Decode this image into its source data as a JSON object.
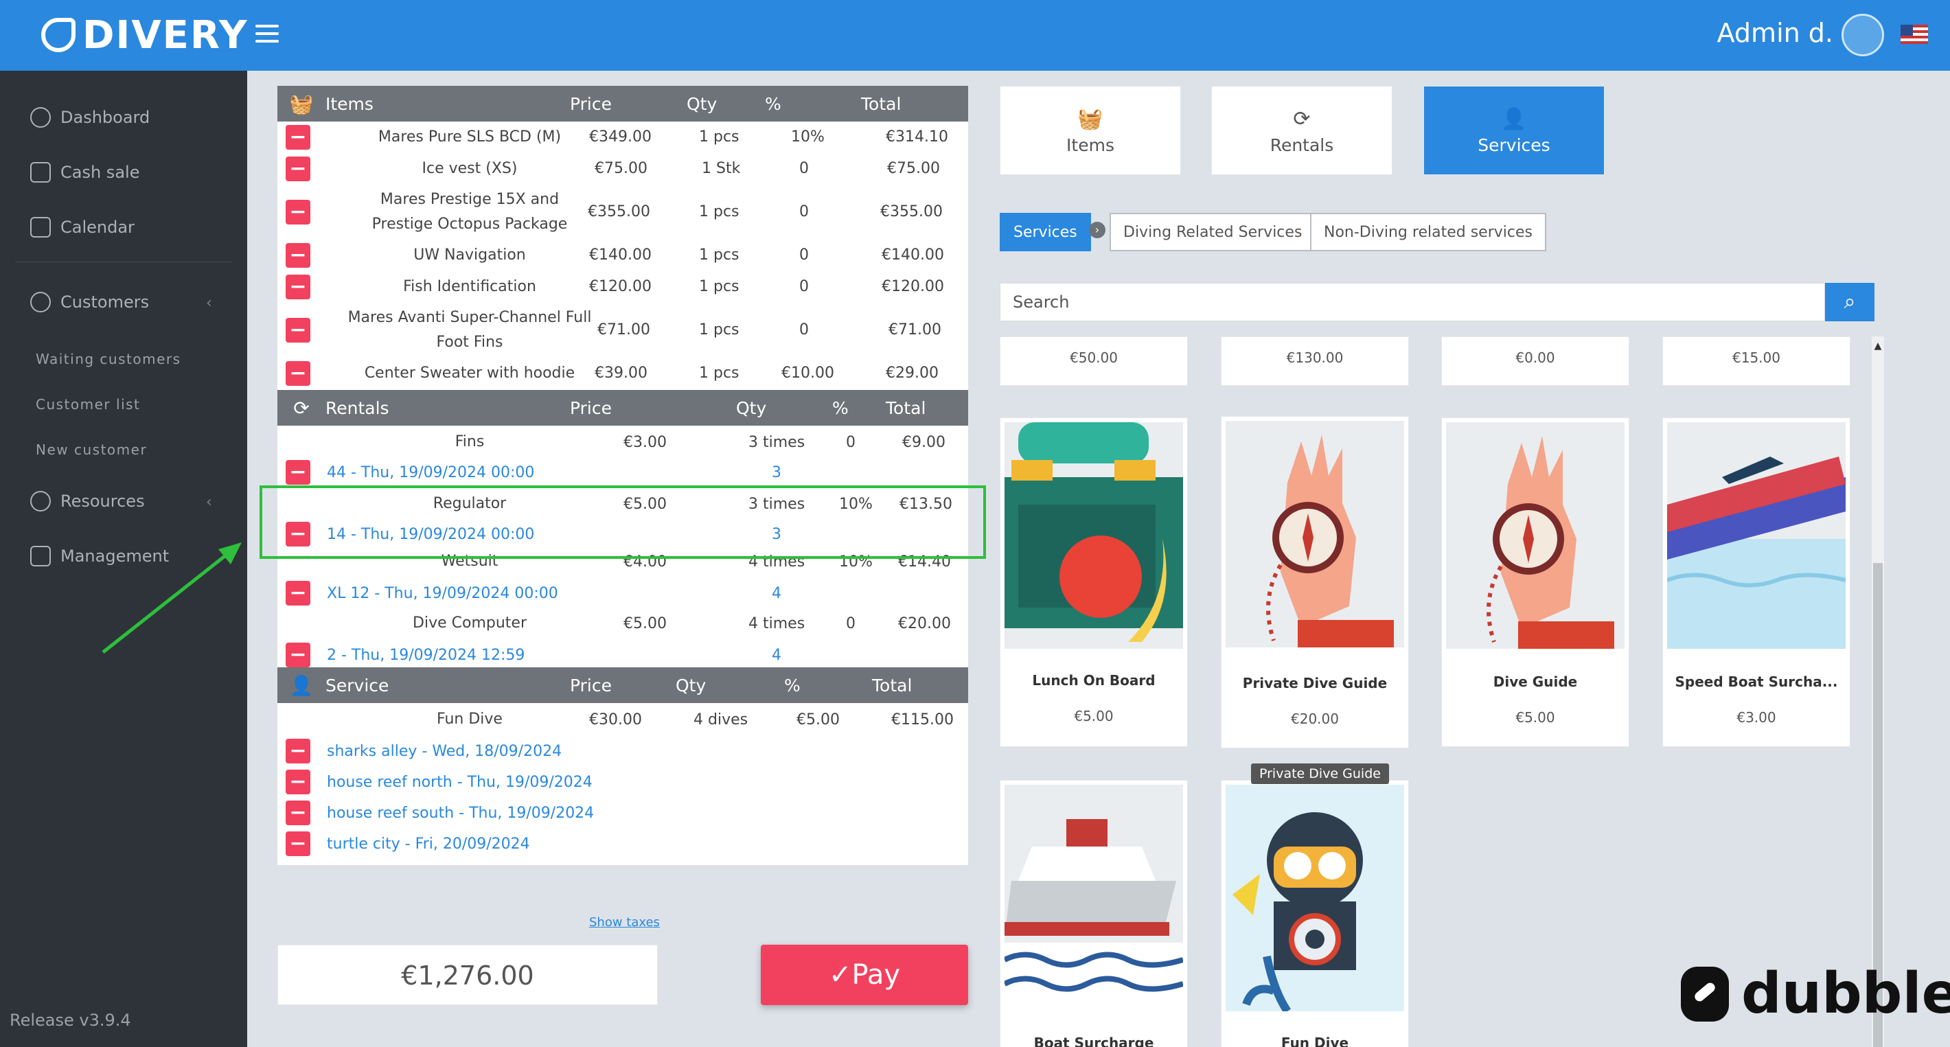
{
  "app": {
    "brand": "DIVERY",
    "admin_name": "Admin d.",
    "release": "Release v3.9.4"
  },
  "sidebar": {
    "items": [
      {
        "label": "Dashboard",
        "icon": "speedometer-icon"
      },
      {
        "label": "Cash sale",
        "icon": "cart-icon"
      },
      {
        "label": "Calendar",
        "icon": "calendar-icon"
      },
      {
        "label": "Customers",
        "icon": "users-icon"
      },
      {
        "label": "Resources",
        "icon": "gear-icon"
      },
      {
        "label": "Management",
        "icon": "building-icon"
      }
    ],
    "customer_sub": [
      "Waiting customers",
      "Customer list",
      "New customer"
    ]
  },
  "cart": {
    "items_header": {
      "title": "Items",
      "price": "Price",
      "qty": "Qty",
      "pct": "%",
      "total": "Total"
    },
    "items": [
      {
        "name": "Mares Pure SLS BCD (M)",
        "price": "€349.00",
        "qty": "1 pcs",
        "pct": "10%",
        "total": "€314.10"
      },
      {
        "name": "Ice vest (XS)",
        "price": "€75.00",
        "qty": "1 Stk",
        "pct": "0",
        "total": "€75.00"
      },
      {
        "name": "Mares Prestige 15X and Prestige Octopus Package",
        "price": "€355.00",
        "qty": "1 pcs",
        "pct": "0",
        "total": "€355.00"
      },
      {
        "name": "UW Navigation",
        "price": "€140.00",
        "qty": "1 pcs",
        "pct": "0",
        "total": "€140.00"
      },
      {
        "name": "Fish Identification",
        "price": "€120.00",
        "qty": "1 pcs",
        "pct": "0",
        "total": "€120.00"
      },
      {
        "name": "Mares Avanti Super-Channel Full Foot Fins",
        "price": "€71.00",
        "qty": "1 pcs",
        "pct": "0",
        "total": "€71.00"
      },
      {
        "name": "Center Sweater with hoodie",
        "price": "€39.00",
        "qty": "1 pcs",
        "pct": "€10.00",
        "total": "€29.00"
      }
    ],
    "rentals_header": {
      "title": "Rentals",
      "price": "Price",
      "qty": "Qty",
      "pct": "%",
      "total": "Total"
    },
    "rentals": [
      {
        "name": "Fins",
        "price": "€3.00",
        "qty": "3 times",
        "pct": "0",
        "total": "€9.00",
        "link": "44 - Thu, 19/09/2024 00:00",
        "count": "3"
      },
      {
        "name": "Regulator",
        "price": "€5.00",
        "qty": "3 times",
        "pct": "10%",
        "total": "€13.50",
        "link": "14 - Thu, 19/09/2024 00:00",
        "count": "3"
      },
      {
        "name": "Wetsuit",
        "price": "€4.00",
        "qty": "4 times",
        "pct": "10%",
        "total": "€14.40",
        "link": "XL 12 - Thu, 19/09/2024 00:00",
        "count": "4"
      },
      {
        "name": "Dive Computer",
        "price": "€5.00",
        "qty": "4 times",
        "pct": "0",
        "total": "€20.00",
        "link": "2 - Thu, 19/09/2024 12:59",
        "count": "4"
      }
    ],
    "service_header": {
      "title": "Service",
      "price": "Price",
      "qty": "Qty",
      "pct": "%",
      "total": "Total"
    },
    "service": {
      "name": "Fun Dive",
      "price": "€30.00",
      "qty": "4 dives",
      "pct": "€5.00",
      "total": "€115.00"
    },
    "dives": [
      "sharks alley - Wed, 18/09/2024",
      "house reef north - Thu, 19/09/2024",
      "house reef south - Thu, 19/09/2024",
      "turtle city - Fri, 20/09/2024"
    ],
    "show_taxes": "Show taxes",
    "grand_total": "€1,276.00",
    "pay_label": "Pay"
  },
  "catalog": {
    "tabs": [
      {
        "label": "Items",
        "icon": "basket-icon"
      },
      {
        "label": "Rentals",
        "icon": "refresh-icon"
      },
      {
        "label": "Services",
        "icon": "user-icon"
      }
    ],
    "filters": [
      "Services",
      "Diving Related Services",
      "Non-Diving related services"
    ],
    "search_placeholder": "Search",
    "top_prices": [
      "€50.00",
      "€130.00",
      "€0.00",
      "€15.00"
    ],
    "cards": [
      {
        "name": "Lunch On Board",
        "price": "€5.00"
      },
      {
        "name": "Private Dive Guide",
        "price": "€20.00"
      },
      {
        "name": "Dive Guide",
        "price": "€5.00"
      },
      {
        "name": "Speed Boat Surcha...",
        "price": "€3.00"
      },
      {
        "name": "Boat Surcharge",
        "price": ""
      },
      {
        "name": "Fun Dive",
        "price": ""
      }
    ],
    "tooltip": "Private Dive Guide"
  },
  "watermark": "dubble",
  "colors": {
    "primary": "#2a88de",
    "danger": "#f2415f",
    "highlight": "#2ebf3c",
    "sidebar": "#2e3339"
  }
}
